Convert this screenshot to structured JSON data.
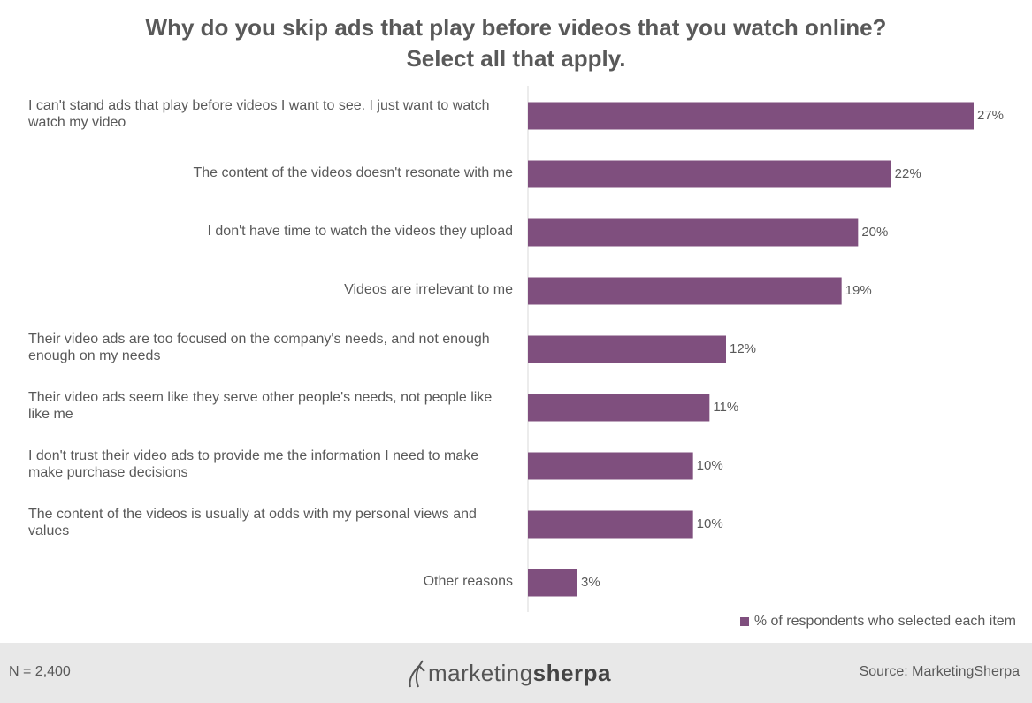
{
  "chart_data": {
    "type": "bar",
    "orientation": "horizontal",
    "title": "Why do you skip ads that play before videos that you watch online?",
    "subtitle": "Select all that apply.",
    "categories": [
      "I can't stand ads that play before videos I want to see. I just want to watch watch my video",
      "The content of the videos doesn't resonate with me",
      "I don't have time to watch the videos they upload",
      "Videos are irrelevant to me",
      "Their video ads are too focused on the company's needs, and not enough enough on my needs",
      "Their video ads seem like they serve other people's needs, not people like like me",
      "I don't trust their video ads to provide me the information I need to make make purchase decisions",
      "The content of the videos is usually at odds with my personal views and values",
      "Other reasons"
    ],
    "series": [
      {
        "name": "% of respondents who selected each item",
        "values": [
          27,
          22,
          20,
          19,
          12,
          11,
          10,
          10,
          3
        ],
        "value_labels": [
          "27%",
          "22%",
          "20%",
          "19%",
          "12%",
          "11%",
          "10%",
          "10%",
          "3%"
        ]
      }
    ],
    "xlim": [
      0,
      30
    ],
    "grid": false,
    "legend_position": "bottom-right",
    "bar_color": "#7f4f7e"
  },
  "footer": {
    "sample_size": "N = 2,400",
    "source": "Source: MarketingSherpa",
    "logo_light": "marketing",
    "logo_bold": "sherpa"
  }
}
